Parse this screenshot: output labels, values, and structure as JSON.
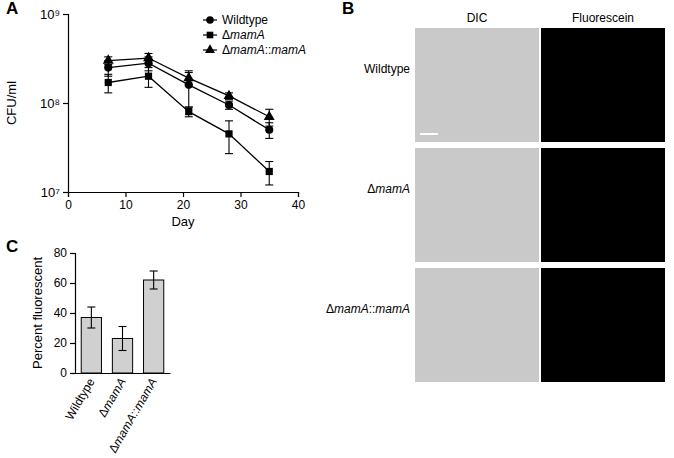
{
  "chart_data": [
    {
      "type": "line",
      "title": "A",
      "x_label": "Day",
      "y_label": "CFU/ml",
      "log": "y",
      "legend": "upper right",
      "x": [
        7,
        14,
        21,
        28,
        35
      ],
      "xlim": [
        0,
        40
      ],
      "xticks": [
        0,
        10,
        20,
        30,
        40
      ],
      "ylim": [
        10000000,
        1000000000
      ],
      "yticks": [
        {
          "value": 10000000,
          "label": "10⁷"
        },
        {
          "value": 100000000,
          "label": "10⁸"
        },
        {
          "value": 1000000000,
          "label": "10⁹"
        }
      ],
      "series": [
        {
          "name": "Wildtype",
          "color": "#000000",
          "marker": "circle",
          "values": [
            250000000,
            280000000,
            160000000,
            95000000,
            50000000
          ],
          "errors": [
            50000000,
            50000000,
            70000000,
            10000000,
            10000000
          ]
        },
        {
          "name": "ΔmamA",
          "color": "#000000",
          "marker": "square",
          "values": [
            170000000,
            200000000,
            80000000,
            45000000,
            17000000
          ],
          "errors": [
            40000000,
            50000000,
            10000000,
            18000000,
            5000000
          ]
        },
        {
          "name": "ΔmamA::mamA",
          "color": "#000000",
          "marker": "triangle",
          "values": [
            300000000,
            320000000,
            190000000,
            120000000,
            70000000
          ],
          "errors": [
            30000000,
            40000000,
            30000000,
            10000000,
            15000000
          ]
        }
      ]
    },
    {
      "type": "image",
      "title": "B",
      "columns": [
        "DIC",
        "Fluorescein"
      ],
      "rows": [
        "Wildtype",
        "ΔmamA",
        "ΔmamA::mamA"
      ]
    },
    {
      "type": "bar",
      "title": "C",
      "y_label": "Percent fluorescent",
      "categories": [
        "Wildtype",
        "ΔmamA",
        "ΔmamA::mamA"
      ],
      "values": [
        37,
        23,
        62
      ],
      "errors": [
        7,
        8,
        6
      ],
      "color": "#d0d0d0",
      "ylim": [
        0,
        80
      ],
      "yticks": [
        0,
        20,
        40,
        60,
        80
      ]
    }
  ]
}
